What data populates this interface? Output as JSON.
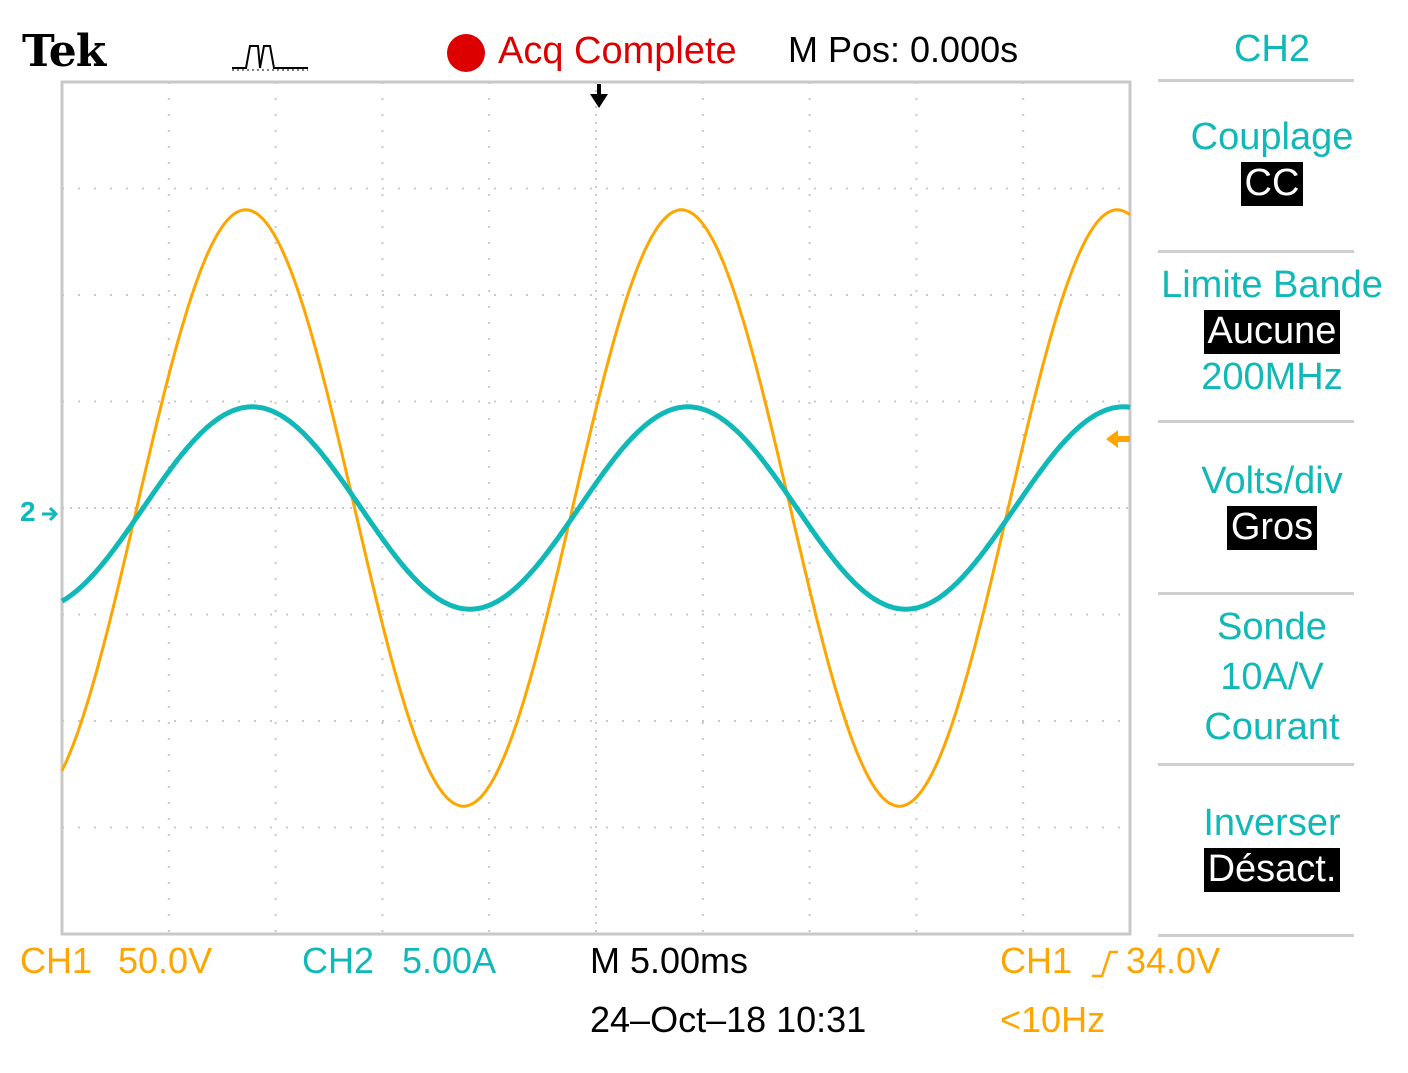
{
  "header": {
    "brand": "Tek",
    "acq_status": "Acq Complete",
    "mpos": "M Pos: 0.000s",
    "channel": "CH2"
  },
  "menu": {
    "coupling_label": "Couplage",
    "coupling_value": "CC",
    "bw_label": "Limite Bande",
    "bw_value": "Aucune",
    "bw_extra": "200MHz",
    "vdiv_label": "Volts/div",
    "vdiv_value": "Gros",
    "probe_label": "Sonde",
    "probe_ratio": "10A/V",
    "probe_type": "Courant",
    "invert_label": "Inverser",
    "invert_value": "Désact."
  },
  "footer": {
    "ch1_label": "CH1",
    "ch1_scale": "50.0V",
    "ch2_label": "CH2",
    "ch2_scale": "5.00A",
    "timebase": "M 5.00ms",
    "datetime": "24–Oct–18 10:31",
    "trig_source": "CH1",
    "trig_level": "34.0V",
    "trig_freq": "<10Hz"
  },
  "markers": {
    "ch2_ground": "2"
  },
  "colors": {
    "ch1": "#ffa500",
    "ch2": "#10b8b8",
    "acq": "#dd0000"
  },
  "chart_data": {
    "type": "line",
    "xlim": [
      0,
      10
    ],
    "ylim": [
      -4,
      4
    ],
    "grid": true,
    "series": [
      {
        "name": "CH1",
        "amplitude_div": 2.8,
        "period_div": 4.08,
        "peak_x_div": 1.72,
        "offset_div": 0
      },
      {
        "name": "CH2",
        "amplitude_div": 0.95,
        "period_div": 4.08,
        "peak_x_div": 1.78,
        "offset_div": 0
      }
    ]
  }
}
